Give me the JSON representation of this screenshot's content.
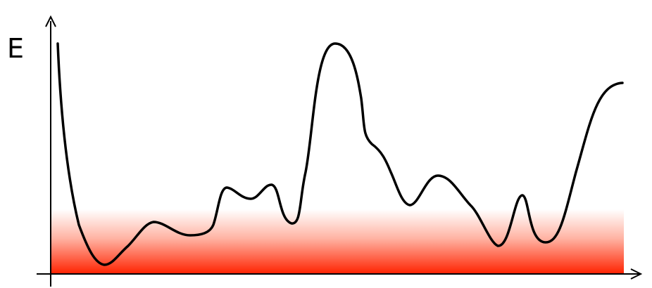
{
  "diagram": {
    "y_axis_label": "E",
    "colors": {
      "curve": "#000000",
      "axes": "#000000",
      "band_top": "#ffffff",
      "band_bottom": "#ff2200"
    }
  }
}
